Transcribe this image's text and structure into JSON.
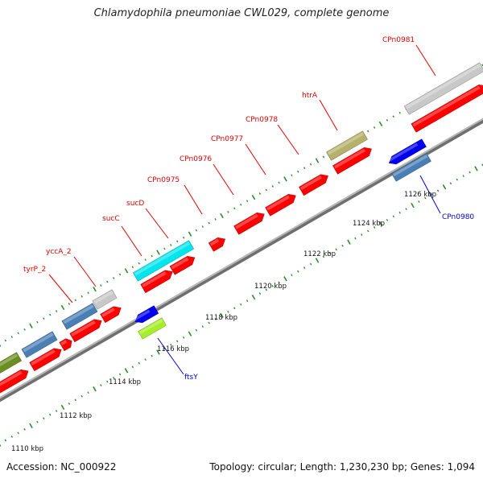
{
  "title": "Chlamydophila pneumoniae CWL029, complete genome",
  "footer": {
    "accession": "Accession: NC_000922",
    "summary": "Topology: circular; Length: 1,230,230 bp; Genes: 1,094"
  },
  "scale_labels": [
    "1110 kbp",
    "1112 kbp",
    "1114 kbp",
    "1116 kbp",
    "1118 kbp",
    "1120 kbp",
    "1122 kbp",
    "1124 kbp",
    "1126 kbp"
  ],
  "gene_labels_forward": [
    "tyrP_2",
    "yccA_2",
    "sucC",
    "sucD",
    "CPn0975",
    "CPn0976",
    "CPn0977",
    "CPn0978",
    "htrA",
    "CPn0981"
  ],
  "gene_labels_reverse": [
    "ftsY",
    "CPn0980"
  ],
  "colors": {
    "forward_label": "#dd0000",
    "reverse_label": "#0000cc",
    "cds": "#ff0000",
    "backbone": "#8a8a8a",
    "tick": "#2e8b2e",
    "gene_gray": "#c8c8c8",
    "gene_steelblue": "#4a7fb5",
    "gene_cyan": "#00e5ee",
    "gene_olive": "#b5b06a",
    "gene_darkolive": "#6b8e23",
    "gene_blue": "#0000ee",
    "gene_lime": "#a6ee2c"
  }
}
